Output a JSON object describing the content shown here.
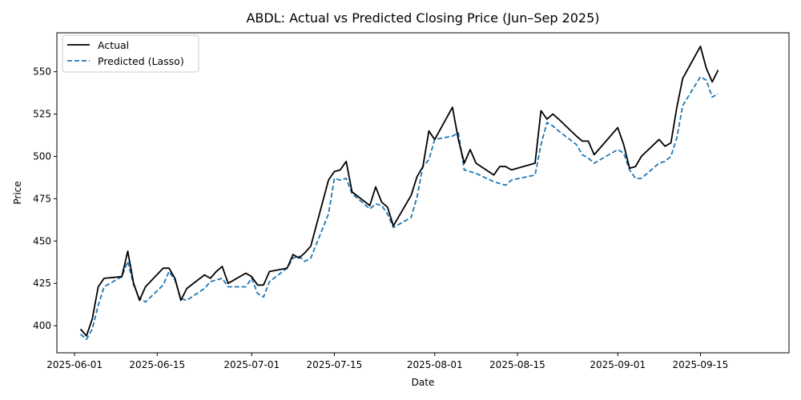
{
  "chart_data": {
    "type": "line",
    "title": "ABDL: Actual vs Predicted Closing Price (Jun–Sep 2025)",
    "xlabel": "Date",
    "ylabel": "Price",
    "xlim": [
      "2025-05-29",
      "2025-09-30"
    ],
    "ylim": [
      384,
      573
    ],
    "xticks": [
      "2025-06-01",
      "2025-06-15",
      "2025-07-01",
      "2025-07-15",
      "2025-08-01",
      "2025-08-15",
      "2025-09-01",
      "2025-09-15"
    ],
    "yticks": [
      400,
      425,
      450,
      475,
      500,
      525,
      550
    ],
    "grid": false,
    "legend": {
      "placement": "top-left"
    },
    "series": [
      {
        "name": "Actual",
        "color": "#000000",
        "style": "solid",
        "points": [
          [
            "2025-06-02",
            398
          ],
          [
            "2025-06-03",
            394
          ],
          [
            "2025-06-04",
            404
          ],
          [
            "2025-06-05",
            423
          ],
          [
            "2025-06-06",
            428
          ],
          [
            "2025-06-09",
            429
          ],
          [
            "2025-06-10",
            444
          ],
          [
            "2025-06-11",
            425
          ],
          [
            "2025-06-12",
            415
          ],
          [
            "2025-06-13",
            423
          ],
          [
            "2025-06-16",
            434
          ],
          [
            "2025-06-17",
            434
          ],
          [
            "2025-06-18",
            428
          ],
          [
            "2025-06-19",
            415
          ],
          [
            "2025-06-20",
            422
          ],
          [
            "2025-06-23",
            430
          ],
          [
            "2025-06-24",
            428
          ],
          [
            "2025-06-25",
            432
          ],
          [
            "2025-06-26",
            435
          ],
          [
            "2025-06-27",
            425
          ],
          [
            "2025-06-30",
            431
          ],
          [
            "2025-07-01",
            429
          ],
          [
            "2025-07-02",
            424
          ],
          [
            "2025-07-03",
            424
          ],
          [
            "2025-07-04",
            432
          ],
          [
            "2025-07-07",
            434
          ],
          [
            "2025-07-08",
            442
          ],
          [
            "2025-07-09",
            440
          ],
          [
            "2025-07-10",
            443
          ],
          [
            "2025-07-11",
            447
          ],
          [
            "2025-07-14",
            486
          ],
          [
            "2025-07-15",
            491
          ],
          [
            "2025-07-16",
            492
          ],
          [
            "2025-07-17",
            497
          ],
          [
            "2025-07-18",
            479
          ],
          [
            "2025-07-21",
            471
          ],
          [
            "2025-07-22",
            482
          ],
          [
            "2025-07-23",
            473
          ],
          [
            "2025-07-24",
            470
          ],
          [
            "2025-07-25",
            459
          ],
          [
            "2025-07-28",
            477
          ],
          [
            "2025-07-29",
            488
          ],
          [
            "2025-07-30",
            494
          ],
          [
            "2025-07-31",
            515
          ],
          [
            "2025-08-01",
            510
          ],
          [
            "2025-08-04",
            529
          ],
          [
            "2025-08-05",
            510
          ],
          [
            "2025-08-06",
            496
          ],
          [
            "2025-08-07",
            504
          ],
          [
            "2025-08-08",
            496
          ],
          [
            "2025-08-11",
            489
          ],
          [
            "2025-08-12",
            494
          ],
          [
            "2025-08-13",
            494
          ],
          [
            "2025-08-14",
            492
          ],
          [
            "2025-08-18",
            496
          ],
          [
            "2025-08-19",
            527
          ],
          [
            "2025-08-20",
            522
          ],
          [
            "2025-08-21",
            525
          ],
          [
            "2025-08-22",
            522
          ],
          [
            "2025-08-25",
            512
          ],
          [
            "2025-08-26",
            509
          ],
          [
            "2025-08-27",
            509
          ],
          [
            "2025-08-28",
            501
          ],
          [
            "2025-09-01",
            517
          ],
          [
            "2025-09-02",
            507
          ],
          [
            "2025-09-03",
            493
          ],
          [
            "2025-09-04",
            494
          ],
          [
            "2025-09-05",
            500
          ],
          [
            "2025-09-08",
            510
          ],
          [
            "2025-09-09",
            506
          ],
          [
            "2025-09-10",
            508
          ],
          [
            "2025-09-11",
            529
          ],
          [
            "2025-09-12",
            546
          ],
          [
            "2025-09-15",
            565
          ],
          [
            "2025-09-16",
            552
          ],
          [
            "2025-09-17",
            544
          ],
          [
            "2025-09-18",
            551
          ]
        ]
      },
      {
        "name": "Predicted (Lasso)",
        "color": "#1f77b4",
        "style": "dashed",
        "points": [
          [
            "2025-06-02",
            395
          ],
          [
            "2025-06-03",
            392
          ],
          [
            "2025-06-04",
            398
          ],
          [
            "2025-06-05",
            412
          ],
          [
            "2025-06-06",
            423
          ],
          [
            "2025-06-09",
            429
          ],
          [
            "2025-06-10",
            438
          ],
          [
            "2025-06-11",
            424
          ],
          [
            "2025-06-12",
            416
          ],
          [
            "2025-06-13",
            414
          ],
          [
            "2025-06-16",
            424
          ],
          [
            "2025-06-17",
            432
          ],
          [
            "2025-06-18",
            427
          ],
          [
            "2025-06-19",
            416
          ],
          [
            "2025-06-20",
            415
          ],
          [
            "2025-06-23",
            422
          ],
          [
            "2025-06-24",
            426
          ],
          [
            "2025-06-25",
            427
          ],
          [
            "2025-06-26",
            428
          ],
          [
            "2025-06-27",
            423
          ],
          [
            "2025-06-30",
            423
          ],
          [
            "2025-07-01",
            428
          ],
          [
            "2025-07-02",
            419
          ],
          [
            "2025-07-03",
            417
          ],
          [
            "2025-07-04",
            426
          ],
          [
            "2025-07-07",
            434
          ],
          [
            "2025-07-08",
            440
          ],
          [
            "2025-07-09",
            441
          ],
          [
            "2025-07-10",
            438
          ],
          [
            "2025-07-11",
            440
          ],
          [
            "2025-07-14",
            466
          ],
          [
            "2025-07-15",
            487
          ],
          [
            "2025-07-16",
            486
          ],
          [
            "2025-07-17",
            487
          ],
          [
            "2025-07-18",
            478
          ],
          [
            "2025-07-21",
            469
          ],
          [
            "2025-07-22",
            472
          ],
          [
            "2025-07-23",
            471
          ],
          [
            "2025-07-24",
            466
          ],
          [
            "2025-07-25",
            458
          ],
          [
            "2025-07-28",
            464
          ],
          [
            "2025-07-29",
            476
          ],
          [
            "2025-07-30",
            494
          ],
          [
            "2025-07-31",
            498
          ],
          [
            "2025-08-01",
            510
          ],
          [
            "2025-08-04",
            512
          ],
          [
            "2025-08-05",
            514
          ],
          [
            "2025-08-06",
            492
          ],
          [
            "2025-08-07",
            491
          ],
          [
            "2025-08-08",
            490
          ],
          [
            "2025-08-11",
            485
          ],
          [
            "2025-08-12",
            484
          ],
          [
            "2025-08-13",
            483
          ],
          [
            "2025-08-14",
            486
          ],
          [
            "2025-08-18",
            489
          ],
          [
            "2025-08-19",
            507
          ],
          [
            "2025-08-20",
            520
          ],
          [
            "2025-08-21",
            518
          ],
          [
            "2025-08-22",
            515
          ],
          [
            "2025-08-25",
            507
          ],
          [
            "2025-08-26",
            501
          ],
          [
            "2025-08-27",
            499
          ],
          [
            "2025-08-28",
            496
          ],
          [
            "2025-09-01",
            504
          ],
          [
            "2025-09-02",
            502
          ],
          [
            "2025-09-03",
            492
          ],
          [
            "2025-09-04",
            487
          ],
          [
            "2025-09-05",
            487
          ],
          [
            "2025-09-08",
            496
          ],
          [
            "2025-09-09",
            497
          ],
          [
            "2025-09-10",
            500
          ],
          [
            "2025-09-11",
            511
          ],
          [
            "2025-09-12",
            530
          ],
          [
            "2025-09-15",
            547
          ],
          [
            "2025-09-16",
            545
          ],
          [
            "2025-09-17",
            535
          ],
          [
            "2025-09-18",
            537
          ]
        ]
      }
    ]
  }
}
